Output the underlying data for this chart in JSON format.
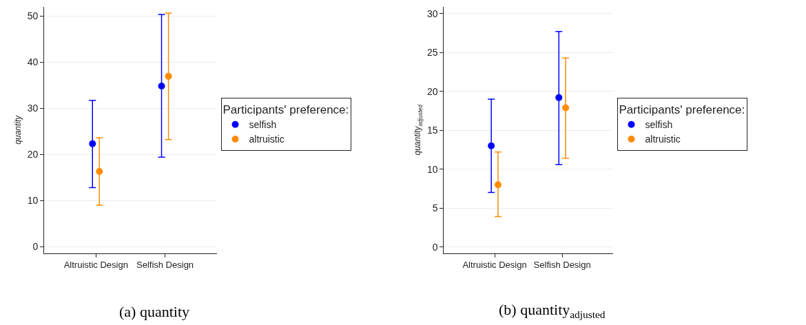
{
  "chart_data": [
    {
      "type": "scatter",
      "categories": [
        "Altruistic Design",
        "Selfish Design"
      ],
      "ylabel": "quantity",
      "ylim": [
        -1.4,
        52
      ],
      "yticks": [
        0,
        10,
        20,
        30,
        40,
        50
      ],
      "grid": "y",
      "legend": "right",
      "legend_title": "Participants' preference:",
      "marker": "circle",
      "annotations": [
        "(a) quantity"
      ],
      "series": [
        {
          "name": "selfish",
          "color": "#0000ff",
          "values": [
            22.3,
            34.8
          ],
          "errors": [
            [
              12.8,
              31.7
            ],
            [
              19.4,
              50.3
            ]
          ]
        },
        {
          "name": "altruistic",
          "color": "#ff8c00",
          "values": [
            16.3,
            36.9
          ],
          "errors": [
            [
              9.0,
              23.6
            ],
            [
              23.2,
              50.6
            ]
          ]
        }
      ]
    },
    {
      "type": "scatter",
      "categories": [
        "Altruistic Design",
        "Selfish Design"
      ],
      "ylabel": "quantity$_{adjusted}$",
      "ylim": [
        -0.8,
        30.9
      ],
      "yticks": [
        0,
        5,
        10,
        15,
        20,
        25,
        30
      ],
      "grid": "y",
      "legend": "right",
      "legend_title": "Participants' preference:",
      "marker": "circle",
      "annotations": [
        "(b) quantity$_{adjusted}$"
      ],
      "series": [
        {
          "name": "selfish",
          "color": "#0000ff",
          "values": [
            13.0,
            19.2
          ],
          "errors": [
            [
              7.0,
              19.0
            ],
            [
              10.6,
              27.7
            ]
          ]
        },
        {
          "name": "altruistic",
          "color": "#ff8c00",
          "values": [
            8.0,
            17.9
          ],
          "errors": [
            [
              3.9,
              12.2
            ],
            [
              11.4,
              24.3
            ]
          ]
        }
      ]
    }
  ]
}
